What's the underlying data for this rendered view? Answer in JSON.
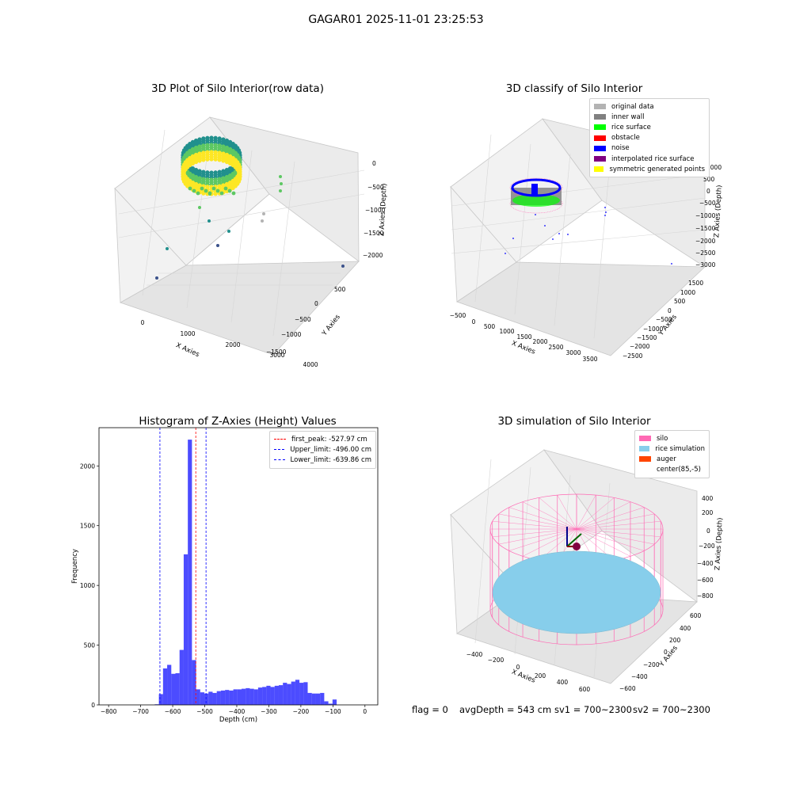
{
  "figure": {
    "suptitle": "GAGAR01 2025-11-01 23:25:53",
    "status": {
      "flag": "flag = 0",
      "avg_depth": "avgDepth = 543 cm",
      "sv1": "sv1 = 700~2300",
      "sv2": "sv2 = 700~2300"
    }
  },
  "chart_data": [
    {
      "id": "raw3d",
      "type": "scatter",
      "title": "3D Plot of Silo Interior(row data)",
      "xlabel": "X Axies",
      "ylabel": "Y Axies",
      "zlabel": "Z Axies (Depth)",
      "x_ticks": [
        "0",
        "1000",
        "2000",
        "3000",
        "4000"
      ],
      "y_ticks": [
        "500",
        "0",
        "−500",
        "−1000",
        "−1500"
      ],
      "z_ticks": [
        "0",
        "−500",
        "−1000",
        "−1500",
        "−2000"
      ],
      "colormap": [
        "#440154",
        "#3b528b",
        "#21908d",
        "#5dc863",
        "#fde725"
      ],
      "projection": "3d"
    },
    {
      "id": "classify3d",
      "type": "scatter",
      "title": "3D classify of Silo Interior",
      "xlabel": "X Axies",
      "ylabel": "Y Axies",
      "zlabel": "Z Axies (Depth)",
      "x_ticks": [
        "−500",
        "0",
        "500",
        "1000",
        "1500",
        "2000",
        "2500",
        "3000",
        "3500"
      ],
      "y_ticks": [
        "1500",
        "1000",
        "500",
        "0",
        "−500",
        "−1000",
        "−1500",
        "−2000",
        "−2500"
      ],
      "z_ticks": [
        "1000",
        "500",
        "0",
        "−500",
        "−1000",
        "−1500",
        "−2000",
        "−2500",
        "−3000"
      ],
      "legend": {
        "position": "top-right",
        "entries": [
          {
            "label": "original data",
            "color": "#b3b3b3"
          },
          {
            "label": "inner wall",
            "color": "#808080"
          },
          {
            "label": "rice surface",
            "color": "#00ff00"
          },
          {
            "label": "obstacle",
            "color": "#ff0000"
          },
          {
            "label": "noise",
            "color": "#0000ff"
          },
          {
            "label": "interpolated rice surface",
            "color": "#800080"
          },
          {
            "label": "symmetric generated points",
            "color": "#ffff00"
          }
        ]
      },
      "projection": "3d"
    },
    {
      "id": "hist",
      "type": "bar",
      "title": "Histogram of Z-Axies (Height) Values",
      "xlabel": "Depth (cm)",
      "ylabel": "Frequency",
      "xlim": [
        -830,
        40
      ],
      "ylim": [
        0,
        2320
      ],
      "x_ticks": [
        -800,
        -700,
        -600,
        -500,
        -400,
        -300,
        -200,
        -100,
        0
      ],
      "x_tick_labels": [
        "−800",
        "−700",
        "−600",
        "−500",
        "−400",
        "−300",
        "−200",
        "−100",
        "0"
      ],
      "y_ticks": [
        0,
        500,
        1000,
        1500,
        2000
      ],
      "bar_color": "#0000ff",
      "bar_opacity": 0.7,
      "bin_width": 12.9,
      "bin_start": -656,
      "values": [
        5,
        90,
        305,
        335,
        260,
        265,
        460,
        1260,
        2220,
        375,
        130,
        105,
        95,
        110,
        100,
        115,
        120,
        125,
        120,
        130,
        130,
        135,
        140,
        135,
        130,
        145,
        150,
        160,
        150,
        160,
        165,
        185,
        175,
        195,
        210,
        185,
        190,
        100,
        95,
        95,
        100,
        30,
        10,
        45
      ],
      "vlines": [
        {
          "value": -527.97,
          "label": "first_peak: -527.97 cm",
          "color": "#ff0000"
        },
        {
          "value": -496.0,
          "label": "Upper_limit: -496.00 cm",
          "color": "#0000ff"
        },
        {
          "value": -639.86,
          "label": "Lower_limit: -639.86 cm",
          "color": "#0000ff"
        }
      ],
      "legend_position": "top-right"
    },
    {
      "id": "sim3d",
      "type": "scatter",
      "title": "3D simulation of Silo Interior",
      "xlabel": "X Axies",
      "ylabel": "Y Axies",
      "zlabel": "Z Axies (Depth)",
      "x_ticks": [
        "−400",
        "−200",
        "0",
        "200",
        "400",
        "600"
      ],
      "y_ticks": [
        "600",
        "400",
        "200",
        "0",
        "−200",
        "−400",
        "−600"
      ],
      "z_ticks": [
        "400",
        "200",
        "0",
        "−200",
        "−400",
        "−600",
        "−800"
      ],
      "legend": {
        "position": "top-right",
        "entries": [
          {
            "label": "silo",
            "color": "#ff69b4"
          },
          {
            "label": "rice simulation",
            "color": "#87ceeb"
          },
          {
            "label": "auger",
            "color": "#ff4500"
          },
          {
            "label": "center(85,-5)",
            "color": "#ffffff"
          }
        ]
      },
      "projection": "3d"
    }
  ]
}
